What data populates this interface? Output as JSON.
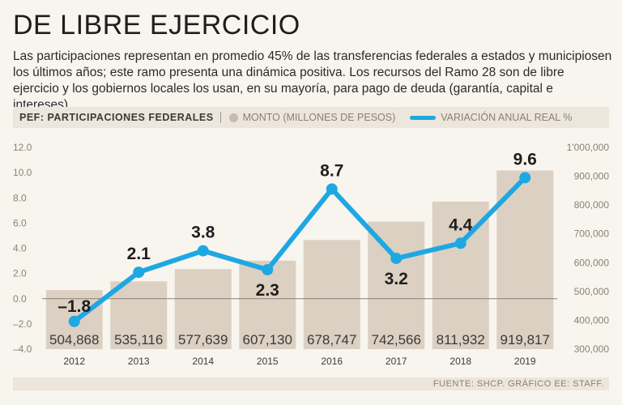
{
  "header": {
    "title": "DE LIBRE EJERCICIO",
    "subtitle": "Las participaciones representan en promedio 45% de las transferencias federales a estados y municipiosen los últimos años; este ramo presenta una dinámica positiva. Los recursos del Ramo 28 son de libre ejercicio y los gobiernos locales los usan, en su mayoría, para pago de deuda (garantía, capital e intereses)."
  },
  "legend": {
    "title": "PEF: PARTICIPACIONES FEDERALES",
    "bars_label": "MONTO (MILLONES DE PESOS)",
    "line_label": "VARIACIÓN ANUAL REAL %"
  },
  "footer": {
    "source": "FUENTE: SHCP. GRÁFICO EE: STAFF."
  },
  "colors": {
    "bar": "#dcd0c2",
    "line": "#1ea8e2",
    "zero_line": "#8a8176"
  },
  "chart_data": {
    "type": "bar",
    "categories": [
      "2012",
      "2013",
      "2014",
      "2015",
      "2016",
      "2017",
      "2018",
      "2019"
    ],
    "series": [
      {
        "name": "MONTO (MILLONES DE PESOS)",
        "type": "bar",
        "axis": "right",
        "values": [
          504868,
          535116,
          577639,
          607130,
          678747,
          742566,
          811932,
          919817
        ],
        "labels": [
          "504,868",
          "535,116",
          "577,639",
          "607,130",
          "678,747",
          "742,566",
          "811,932",
          "919,817"
        ]
      },
      {
        "name": "VARIACIÓN ANUAL REAL %",
        "type": "line",
        "axis": "left",
        "values": [
          -1.8,
          2.1,
          3.8,
          2.3,
          8.7,
          3.2,
          4.4,
          9.6
        ],
        "labels": [
          "–1.8",
          "2.1",
          "3.8",
          "2.3",
          "8.7",
          "3.2",
          "4.4",
          "9.6"
        ]
      }
    ],
    "left_axis": {
      "ylim": [
        -4,
        12
      ],
      "ticks": [
        12,
        10,
        8,
        6,
        4,
        2,
        0,
        -2,
        -4
      ],
      "tick_labels": [
        "12.0",
        "10.0",
        "8.0",
        "6.0",
        "4.0",
        "2.0",
        "0.0",
        "–2.0",
        "–4.0"
      ]
    },
    "right_axis": {
      "ylim": [
        300000,
        1000000
      ],
      "ticks": [
        1000000,
        900000,
        800000,
        700000,
        600000,
        500000,
        400000,
        300000
      ],
      "tick_labels": [
        "1'000,000",
        "900,000",
        "800,000",
        "700,000",
        "600,000",
        "500,000",
        "400,000",
        "300,000"
      ]
    }
  }
}
